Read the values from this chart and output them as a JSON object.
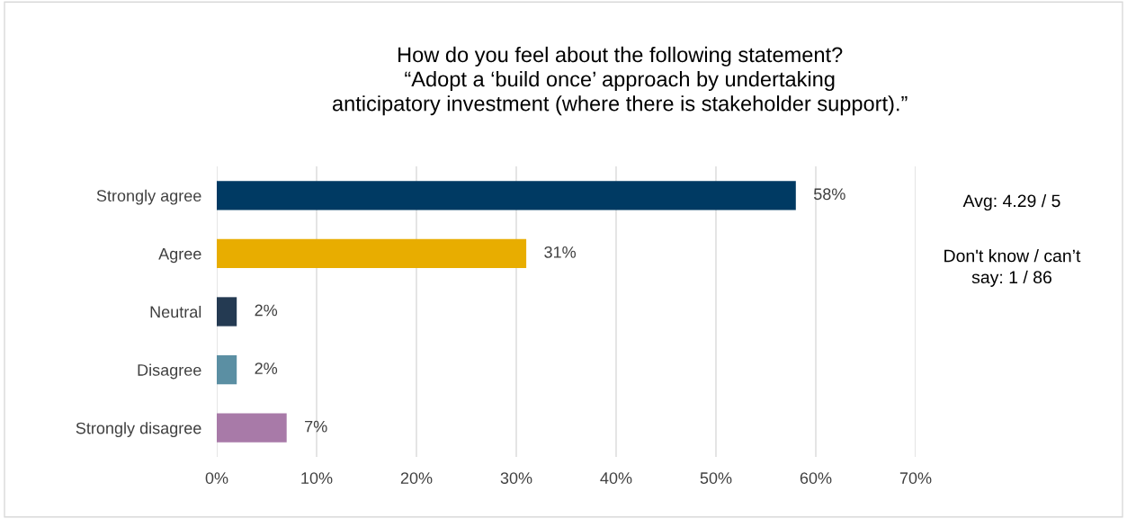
{
  "chart_data": {
    "type": "bar",
    "orientation": "horizontal",
    "title": "How do you feel about the following statement?\n“Adopt a ‘build once’ approach by undertaking\nanticipatory investment (where there is stakeholder support).”",
    "categories": [
      "Strongly agree",
      "Agree",
      "Neutral",
      "Disagree",
      "Strongly disagree"
    ],
    "values": [
      58,
      31,
      2,
      2,
      7
    ],
    "colors": [
      "#003a63",
      "#e8ad00",
      "#243a52",
      "#5b8fa3",
      "#a87aa8"
    ],
    "value_labels": [
      "58%",
      "31%",
      "2%",
      "2%",
      "7%"
    ],
    "xlim": [
      0,
      70
    ],
    "xticks": [
      {
        "value": 0,
        "label": "0%"
      },
      {
        "value": 10,
        "label": "10%"
      },
      {
        "value": 20,
        "label": "20%"
      },
      {
        "value": 30,
        "label": "30%"
      },
      {
        "value": 40,
        "label": "40%"
      },
      {
        "value": 50,
        "label": "50%"
      },
      {
        "value": 60,
        "label": "60%"
      },
      {
        "value": 70,
        "label": "70%"
      }
    ],
    "grid": "x",
    "legend": false,
    "annotations": [
      "Avg: 4.29 / 5",
      "Don't know / can’t\nsay: 1 / 86"
    ]
  }
}
